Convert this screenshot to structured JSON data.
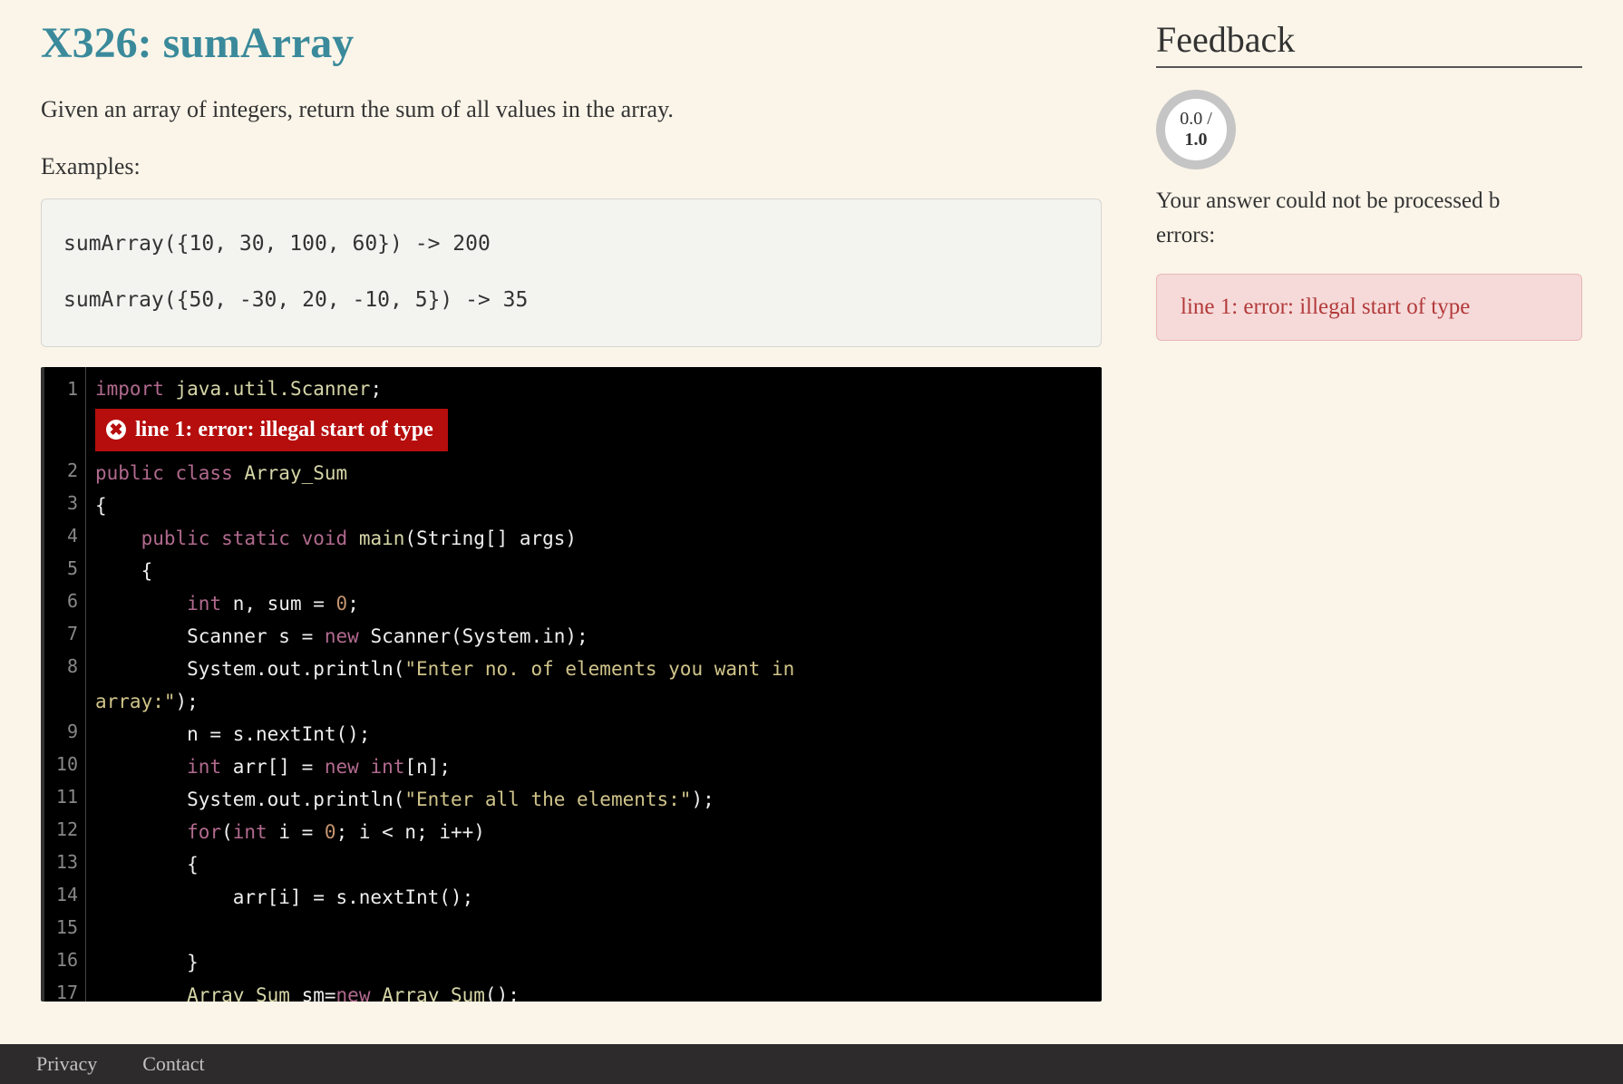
{
  "problem": {
    "title": "X326: sumArray",
    "description": "Given an array of integers, return the sum of all values in the array.",
    "examples_label": "Examples:",
    "examples": [
      "sumArray({10, 30, 100, 60}) -> 200",
      "sumArray({50, -30, 20, -10, 5}) -> 35"
    ]
  },
  "editor": {
    "inline_error": "line 1: error: illegal start of type",
    "lines": [
      {
        "n": 1,
        "tokens": [
          [
            "kw",
            "import"
          ],
          [
            "op",
            " "
          ],
          [
            "pkg",
            "java.util.Scanner"
          ],
          [
            "op",
            ";"
          ]
        ]
      },
      {
        "n": 2,
        "tokens": [
          [
            "kw",
            "public class"
          ],
          [
            "op",
            " "
          ],
          [
            "cls",
            "Array_Sum"
          ]
        ]
      },
      {
        "n": 3,
        "tokens": [
          [
            "op",
            "{"
          ]
        ]
      },
      {
        "n": 4,
        "tokens": [
          [
            "op",
            "    "
          ],
          [
            "kw",
            "public static"
          ],
          [
            "op",
            " "
          ],
          [
            "type",
            "void"
          ],
          [
            "op",
            " "
          ],
          [
            "fn",
            "main"
          ],
          [
            "op",
            "(String[] args)"
          ]
        ]
      },
      {
        "n": 5,
        "tokens": [
          [
            "op",
            "    {"
          ]
        ]
      },
      {
        "n": 6,
        "tokens": [
          [
            "op",
            "        "
          ],
          [
            "type",
            "int"
          ],
          [
            "op",
            " n, sum = "
          ],
          [
            "num",
            "0"
          ],
          [
            "op",
            ";"
          ]
        ]
      },
      {
        "n": 7,
        "tokens": [
          [
            "op",
            "        Scanner s = "
          ],
          [
            "kw",
            "new"
          ],
          [
            "op",
            " Scanner(System.in);"
          ]
        ]
      },
      {
        "n": 8,
        "tokens": [
          [
            "op",
            "        System.out.println("
          ],
          [
            "str",
            "\"Enter no. of elements you want in "
          ]
        ]
      },
      {
        "n": 0,
        "cont": true,
        "tokens": [
          [
            "str",
            "array:\""
          ],
          [
            "op",
            ");"
          ]
        ]
      },
      {
        "n": 9,
        "tokens": [
          [
            "op",
            "        n = s.nextInt();"
          ]
        ]
      },
      {
        "n": 10,
        "tokens": [
          [
            "op",
            "        "
          ],
          [
            "type",
            "int"
          ],
          [
            "op",
            " arr[] = "
          ],
          [
            "kw",
            "new"
          ],
          [
            "op",
            " "
          ],
          [
            "type",
            "int"
          ],
          [
            "op",
            "[n];"
          ]
        ]
      },
      {
        "n": 11,
        "tokens": [
          [
            "op",
            "        System.out.println("
          ],
          [
            "str",
            "\"Enter all the elements:\""
          ],
          [
            "op",
            ");"
          ]
        ]
      },
      {
        "n": 12,
        "tokens": [
          [
            "op",
            "        "
          ],
          [
            "kw",
            "for"
          ],
          [
            "op",
            "("
          ],
          [
            "type",
            "int"
          ],
          [
            "op",
            " i = "
          ],
          [
            "num",
            "0"
          ],
          [
            "op",
            "; i < n; i++)"
          ]
        ]
      },
      {
        "n": 13,
        "tokens": [
          [
            "op",
            "        {"
          ]
        ]
      },
      {
        "n": 14,
        "tokens": [
          [
            "op",
            "            arr[i] = s.nextInt();"
          ]
        ]
      },
      {
        "n": 15,
        "tokens": [
          [
            "op",
            ""
          ]
        ]
      },
      {
        "n": 16,
        "tokens": [
          [
            "op",
            "        }"
          ]
        ]
      },
      {
        "n": 17,
        "tokens": [
          [
            "op",
            "        "
          ],
          [
            "cls",
            "Array_Sum"
          ],
          [
            "op",
            " sm="
          ],
          [
            "kw",
            "new"
          ],
          [
            "op",
            " "
          ],
          [
            "cls",
            "Array_Sum"
          ],
          [
            "op",
            "();"
          ]
        ]
      }
    ]
  },
  "feedback": {
    "heading": "Feedback",
    "score_earned": "0.0 /",
    "score_total": "1.0",
    "message_line1": "Your answer could not be processed b",
    "message_line2": "errors:",
    "error_text": "line 1: error: illegal start of type"
  },
  "footer": {
    "item1": "Privacy",
    "item2": "Contact"
  },
  "colors": {
    "page_bg": "#fbf5e9",
    "title": "#3a8a9b",
    "editor_bg": "#000000",
    "error_bg": "#b60d0d",
    "fb_error_bg": "#f6dada",
    "fb_error_text": "#b33a3a"
  }
}
